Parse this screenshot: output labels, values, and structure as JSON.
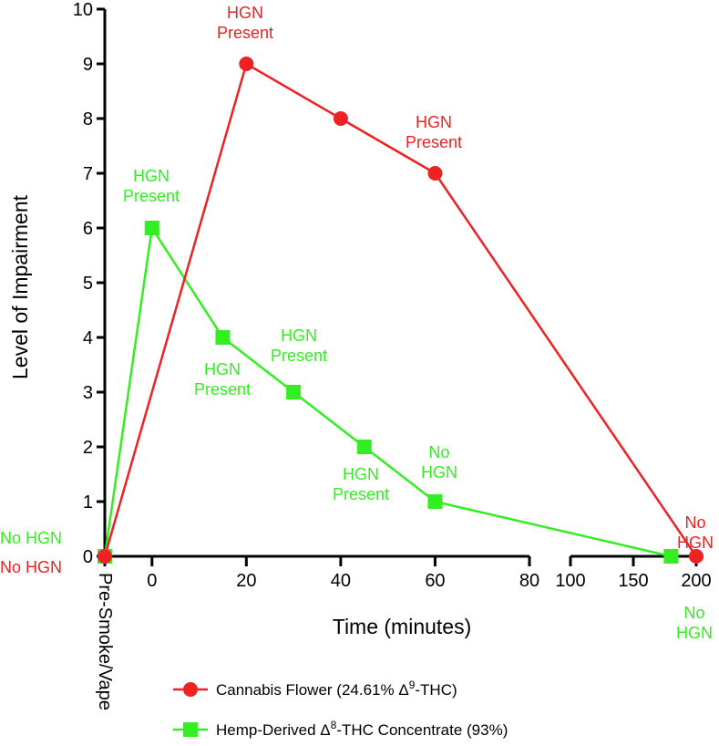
{
  "chart_data": {
    "type": "line",
    "title": "",
    "xlabel": "Time (minutes)",
    "ylabel": "Level of Impairment",
    "ylim": [
      0,
      10
    ],
    "yticks": [
      "0",
      "1",
      "2",
      "3",
      "4",
      "5",
      "6",
      "7",
      "8",
      "9",
      "10"
    ],
    "x_segments": [
      {
        "range": [
          -10,
          80
        ],
        "ticks": [
          0,
          20,
          40,
          60,
          80
        ]
      },
      {
        "range": [
          100,
          200
        ],
        "ticks": [
          100,
          150,
          200
        ]
      }
    ],
    "xtick_labels": [
      "0",
      "20",
      "40",
      "60",
      "80",
      "100",
      "150",
      "200"
    ],
    "x_category_label": "Pre-Smoke/Vape",
    "series": [
      {
        "name": "Cannabis Flower (24.61% Δ9-THC)",
        "legend": {
          "prefix": "Cannabis Flower (24.61% Δ",
          "sup": "9",
          "suffix": "-THC)"
        },
        "color": "#ee2222",
        "marker": "circle",
        "points": [
          {
            "x": "Pre-Smoke/Vape",
            "y": 0
          },
          {
            "x": 20,
            "y": 9
          },
          {
            "x": 40,
            "y": 8
          },
          {
            "x": 60,
            "y": 7
          },
          {
            "x": 200,
            "y": 0
          }
        ]
      },
      {
        "name": "Hemp-Derived Δ8-THC Concentrate (93%)",
        "legend": {
          "prefix": "Hemp-Derived Δ",
          "sup": "8",
          "suffix": "-THC Concentrate (93%)"
        },
        "color": "#33ee22",
        "marker": "square",
        "points": [
          {
            "x": "Pre-Smoke/Vape",
            "y": 0
          },
          {
            "x": 0,
            "y": 6
          },
          {
            "x": 15,
            "y": 4
          },
          {
            "x": 30,
            "y": 3
          },
          {
            "x": 45,
            "y": 2
          },
          {
            "x": 60,
            "y": 1
          },
          {
            "x": 180,
            "y": 0
          }
        ]
      }
    ],
    "annotations": [
      {
        "series": 0,
        "lines": [
          "HGN",
          "Present"
        ]
      },
      {
        "series": 0,
        "lines": [
          "HGN",
          "Present"
        ]
      },
      {
        "series": 0,
        "lines": [
          "No",
          "HGN"
        ]
      },
      {
        "series": 0,
        "lines": [
          "No HGN"
        ]
      },
      {
        "series": 1,
        "lines": [
          "HGN",
          "Present"
        ]
      },
      {
        "series": 1,
        "lines": [
          "HGN",
          "Present"
        ]
      },
      {
        "series": 1,
        "lines": [
          "HGN",
          "Present"
        ]
      },
      {
        "series": 1,
        "lines": [
          "HGN",
          "Present"
        ]
      },
      {
        "series": 1,
        "lines": [
          "No",
          "HGN"
        ]
      },
      {
        "series": 1,
        "lines": [
          "No",
          "HGN"
        ]
      },
      {
        "series": 1,
        "lines": [
          "No HGN"
        ]
      }
    ],
    "grid": false,
    "legend_position": "bottom"
  }
}
